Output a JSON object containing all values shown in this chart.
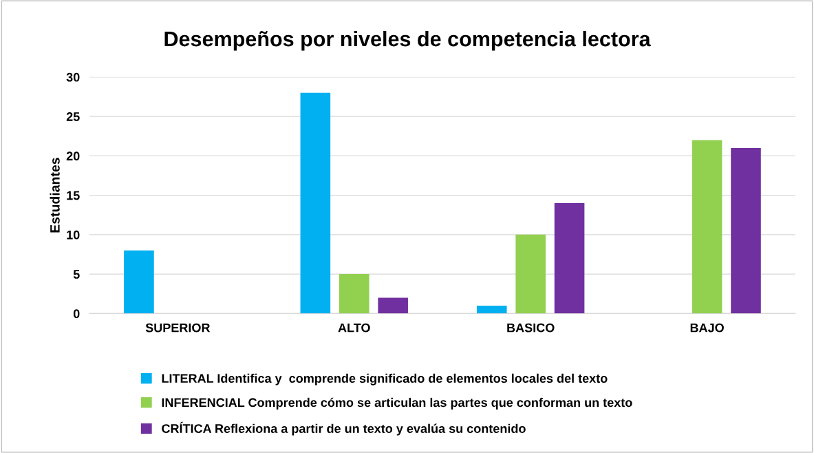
{
  "chart_data": {
    "type": "bar",
    "title": "Desempeños por niveles de competencia lectora",
    "ylabel": "Estudiantes",
    "categories": [
      "SUPERIOR",
      "ALTO",
      "BASICO",
      "BAJO"
    ],
    "series": [
      {
        "name": "LITERAL Identifica y  comprende significado de elementos locales del texto",
        "color": "#00b0f0",
        "values": [
          8,
          28,
          1,
          0
        ]
      },
      {
        "name": "INFERENCIAL Comprende cómo se articulan las partes que conforman un texto",
        "color": "#92d050",
        "values": [
          0,
          5,
          10,
          22
        ]
      },
      {
        "name": "CRÍTICA Reflexiona a partir de un texto y evalúa su contenido",
        "color": "#7030a0",
        "values": [
          0,
          2,
          14,
          21
        ]
      }
    ],
    "ylim": [
      0,
      30
    ],
    "yticks": [
      0,
      5,
      10,
      15,
      20,
      25,
      30
    ],
    "grid": "y",
    "legend": "bottom"
  }
}
